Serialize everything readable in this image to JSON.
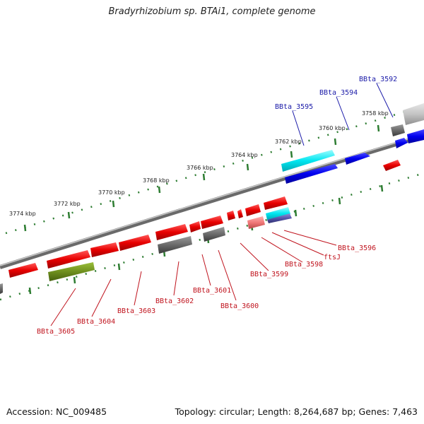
{
  "header": {
    "title": "Bradyrhizobium sp. BTAi1, complete genome"
  },
  "footer": {
    "accession": "Accession: NC_009485",
    "stats": "Topology: circular; Length: 8,264,687 bp; Genes: 7,463"
  },
  "ticks": [
    {
      "label": "3758 kbp"
    },
    {
      "label": "3760 kbp"
    },
    {
      "label": "3762 kbp"
    },
    {
      "label": "3764 kbp"
    },
    {
      "label": "3766 kbp"
    },
    {
      "label": "3768 kbp"
    },
    {
      "label": "3770 kbp"
    },
    {
      "label": "3772 kbp"
    },
    {
      "label": "3774 kbp"
    }
  ],
  "gene_labels_top": [
    {
      "name": "BBta_3592"
    },
    {
      "name": "BBta_3594"
    },
    {
      "name": "BBta_3595"
    }
  ],
  "gene_labels_bottom": [
    {
      "name": "BBta_3596"
    },
    {
      "name": "ftsJ"
    },
    {
      "name": "BBta_3598"
    },
    {
      "name": "BBta_3599"
    },
    {
      "name": "BBta_3600"
    },
    {
      "name": "BBta_3601"
    },
    {
      "name": "BBta_3602"
    },
    {
      "name": "BBta_3603"
    },
    {
      "name": "BBta_3604"
    },
    {
      "name": "BBta_3605"
    }
  ],
  "colors": {
    "top_label": "#1a1aa8",
    "bottom_label": "#c0141e",
    "backbone": "#8a8a8a",
    "tick_dot": "#2e7d32"
  }
}
